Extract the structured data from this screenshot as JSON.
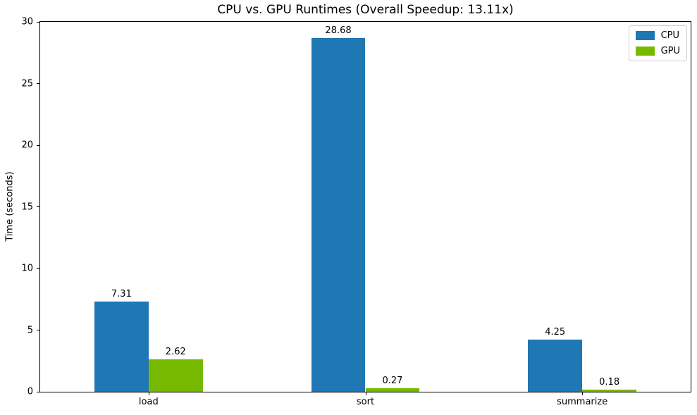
{
  "chart_data": {
    "type": "bar",
    "title": "CPU vs. GPU Runtimes (Overall Speedup: 13.11x)",
    "ylabel": "Time (seconds)",
    "xlabel": "",
    "categories": [
      "load",
      "sort",
      "summarize"
    ],
    "series": [
      {
        "name": "CPU",
        "color": "#1f77b4",
        "values": [
          7.31,
          28.68,
          4.25
        ]
      },
      {
        "name": "GPU",
        "color": "#76b900",
        "values": [
          2.62,
          0.27,
          0.18
        ]
      }
    ],
    "value_labels": [
      [
        "7.31",
        "28.68",
        "4.25"
      ],
      [
        "2.62",
        "0.27",
        "0.18"
      ]
    ],
    "ylim": [
      0,
      30
    ],
    "yticks": [
      0,
      5,
      10,
      15,
      20,
      25,
      30
    ],
    "bar_width_fraction": 0.25,
    "grid": false,
    "legend_position": "upper right",
    "axis_color": "#000000",
    "text_color": "#000000"
  }
}
